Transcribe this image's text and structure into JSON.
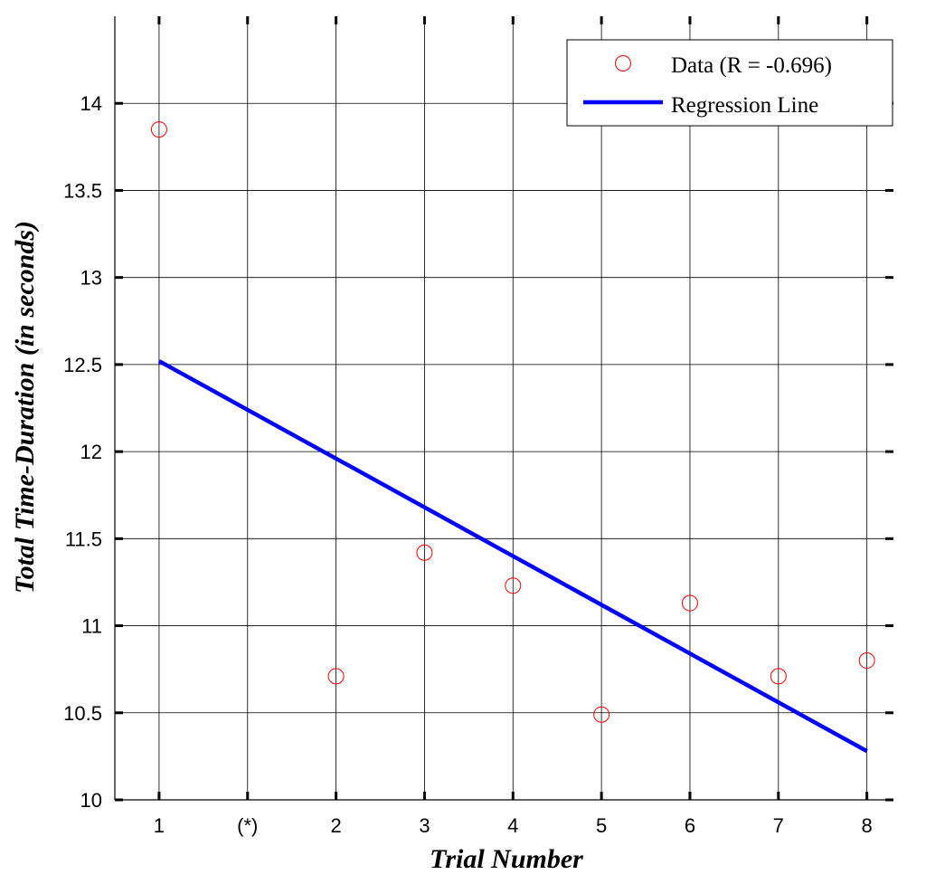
{
  "chart_data": {
    "type": "scatter",
    "title": "",
    "xlabel": "Trial Number",
    "ylabel": "Total Time-Duration (in seconds)",
    "x_ticks": [
      {
        "pos": 1,
        "label": "1"
      },
      {
        "pos": 2,
        "label": "(*)"
      },
      {
        "pos": 3,
        "label": "2"
      },
      {
        "pos": 4,
        "label": "3"
      },
      {
        "pos": 5,
        "label": "4"
      },
      {
        "pos": 6,
        "label": "5"
      },
      {
        "pos": 7,
        "label": "6"
      },
      {
        "pos": 8,
        "label": "7"
      },
      {
        "pos": 9,
        "label": "8"
      }
    ],
    "y_ticks": [
      10,
      10.5,
      11,
      11.5,
      12,
      12.5,
      13,
      13.5,
      14
    ],
    "xlim": [
      0.5,
      9.3
    ],
    "ylim": [
      10,
      14.5
    ],
    "grid": true,
    "legend_position": "top-right",
    "series": [
      {
        "name": "Data (R = -0.696)",
        "kind": "scatter",
        "marker": "open-circle",
        "color": "#ff0000",
        "points": [
          {
            "x": 1,
            "y": 13.85
          },
          {
            "x": 3,
            "y": 10.71
          },
          {
            "x": 4,
            "y": 11.42
          },
          {
            "x": 5,
            "y": 11.23
          },
          {
            "x": 6,
            "y": 10.49
          },
          {
            "x": 7,
            "y": 11.13
          },
          {
            "x": 8,
            "y": 10.71
          },
          {
            "x": 9,
            "y": 10.8
          }
        ]
      },
      {
        "name": "Regression Line",
        "kind": "line",
        "color": "#0000ff",
        "points": [
          {
            "x": 1,
            "y": 12.52
          },
          {
            "x": 9,
            "y": 10.28
          }
        ]
      }
    ]
  }
}
